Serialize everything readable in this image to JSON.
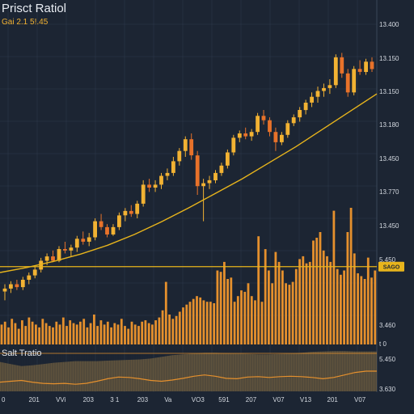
{
  "title": "Prisct Ratiol",
  "subtitle": "Gai 2.1 5!.45",
  "indicator_title": "Salt Tratio",
  "colors": {
    "background": "#1c2533",
    "grid": "#2e3a4c",
    "candle_up": "#f2b233",
    "candle_down": "#e8722a",
    "volume": "#e5902d",
    "trend": "#e7b41c",
    "hline": "#e7b41c",
    "indicator_fill": "#6a5b40",
    "indicator_line": "#e5902d"
  },
  "chart_data": [
    {
      "type": "candlestick",
      "price_axis_labels": [
        "13.400",
        "13.150",
        "13.150",
        "13.180",
        "13.450",
        "13.770",
        "13.450",
        "5.450",
        "3.460"
      ],
      "current_price_label": "SAGO",
      "horizontal_line_value": 2.75,
      "ylim": [
        0,
        10
      ],
      "candles": [
        {
          "o": 1.9,
          "h": 2.15,
          "l": 1.6,
          "c": 2.0
        },
        {
          "o": 2.0,
          "h": 2.25,
          "l": 1.85,
          "c": 2.15
        },
        {
          "o": 2.15,
          "h": 2.3,
          "l": 1.95,
          "c": 2.05
        },
        {
          "o": 2.05,
          "h": 2.4,
          "l": 1.95,
          "c": 2.3
        },
        {
          "o": 2.3,
          "h": 2.55,
          "l": 2.15,
          "c": 2.45
        },
        {
          "o": 2.45,
          "h": 2.75,
          "l": 2.35,
          "c": 2.65
        },
        {
          "o": 2.65,
          "h": 3.05,
          "l": 2.55,
          "c": 2.95
        },
        {
          "o": 2.95,
          "h": 3.2,
          "l": 2.8,
          "c": 3.1
        },
        {
          "o": 3.1,
          "h": 3.3,
          "l": 2.9,
          "c": 2.95
        },
        {
          "o": 2.95,
          "h": 3.45,
          "l": 2.9,
          "c": 3.35
        },
        {
          "o": 3.35,
          "h": 3.6,
          "l": 3.2,
          "c": 3.3
        },
        {
          "o": 3.3,
          "h": 3.5,
          "l": 3.1,
          "c": 3.4
        },
        {
          "o": 3.4,
          "h": 3.8,
          "l": 3.25,
          "c": 3.7
        },
        {
          "o": 3.7,
          "h": 3.95,
          "l": 3.5,
          "c": 3.6
        },
        {
          "o": 3.6,
          "h": 3.9,
          "l": 3.45,
          "c": 3.75
        },
        {
          "o": 3.75,
          "h": 4.4,
          "l": 3.65,
          "c": 4.3
        },
        {
          "o": 4.3,
          "h": 4.55,
          "l": 4.0,
          "c": 4.1
        },
        {
          "o": 4.1,
          "h": 4.2,
          "l": 3.75,
          "c": 3.85
        },
        {
          "o": 3.85,
          "h": 4.2,
          "l": 3.8,
          "c": 4.1
        },
        {
          "o": 4.1,
          "h": 4.6,
          "l": 4.0,
          "c": 4.5
        },
        {
          "o": 4.5,
          "h": 4.75,
          "l": 4.3,
          "c": 4.65
        },
        {
          "o": 4.65,
          "h": 4.85,
          "l": 4.45,
          "c": 4.55
        },
        {
          "o": 4.55,
          "h": 5.0,
          "l": 4.4,
          "c": 4.9
        },
        {
          "o": 4.9,
          "h": 5.7,
          "l": 4.8,
          "c": 5.55
        },
        {
          "o": 5.55,
          "h": 5.75,
          "l": 5.3,
          "c": 5.45
        },
        {
          "o": 5.45,
          "h": 5.7,
          "l": 5.3,
          "c": 5.55
        },
        {
          "o": 5.55,
          "h": 5.95,
          "l": 5.4,
          "c": 5.85
        },
        {
          "o": 5.85,
          "h": 6.1,
          "l": 5.7,
          "c": 5.95
        },
        {
          "o": 5.95,
          "h": 6.5,
          "l": 5.85,
          "c": 6.35
        },
        {
          "o": 6.35,
          "h": 6.8,
          "l": 6.2,
          "c": 6.7
        },
        {
          "o": 6.7,
          "h": 7.2,
          "l": 6.5,
          "c": 7.1
        },
        {
          "o": 7.1,
          "h": 7.3,
          "l": 6.4,
          "c": 6.55
        },
        {
          "o": 6.55,
          "h": 6.7,
          "l": 5.2,
          "c": 5.5
        },
        {
          "o": 5.5,
          "h": 5.75,
          "l": 4.3,
          "c": 5.6
        },
        {
          "o": 5.6,
          "h": 5.85,
          "l": 5.4,
          "c": 5.7
        },
        {
          "o": 5.7,
          "h": 6.05,
          "l": 5.6,
          "c": 5.95
        },
        {
          "o": 5.95,
          "h": 6.3,
          "l": 5.85,
          "c": 6.2
        },
        {
          "o": 6.2,
          "h": 6.75,
          "l": 6.1,
          "c": 6.65
        },
        {
          "o": 6.65,
          "h": 7.25,
          "l": 6.55,
          "c": 7.15
        },
        {
          "o": 7.15,
          "h": 7.4,
          "l": 7.0,
          "c": 7.3
        },
        {
          "o": 7.3,
          "h": 7.5,
          "l": 7.1,
          "c": 7.2
        },
        {
          "o": 7.2,
          "h": 7.45,
          "l": 7.05,
          "c": 7.35
        },
        {
          "o": 7.35,
          "h": 8.0,
          "l": 7.25,
          "c": 7.9
        },
        {
          "o": 7.9,
          "h": 8.1,
          "l": 7.6,
          "c": 7.75
        },
        {
          "o": 7.75,
          "h": 7.85,
          "l": 7.2,
          "c": 7.35
        },
        {
          "o": 7.35,
          "h": 7.5,
          "l": 6.7,
          "c": 7.0
        },
        {
          "o": 7.0,
          "h": 7.35,
          "l": 6.9,
          "c": 7.25
        },
        {
          "o": 7.25,
          "h": 7.75,
          "l": 7.15,
          "c": 7.65
        },
        {
          "o": 7.65,
          "h": 7.95,
          "l": 7.55,
          "c": 7.85
        },
        {
          "o": 7.85,
          "h": 8.2,
          "l": 7.7,
          "c": 8.1
        },
        {
          "o": 8.1,
          "h": 8.45,
          "l": 7.95,
          "c": 8.35
        },
        {
          "o": 8.35,
          "h": 8.7,
          "l": 8.2,
          "c": 8.55
        },
        {
          "o": 8.55,
          "h": 8.9,
          "l": 8.35,
          "c": 8.75
        },
        {
          "o": 8.75,
          "h": 9.0,
          "l": 8.55,
          "c": 8.85
        },
        {
          "o": 8.85,
          "h": 9.15,
          "l": 8.65,
          "c": 8.95
        },
        {
          "o": 8.95,
          "h": 10.0,
          "l": 8.85,
          "c": 9.9
        },
        {
          "o": 9.9,
          "h": 10.05,
          "l": 9.2,
          "c": 9.35
        },
        {
          "o": 9.35,
          "h": 9.5,
          "l": 8.55,
          "c": 8.7
        },
        {
          "o": 8.7,
          "h": 9.6,
          "l": 8.6,
          "c": 9.5
        },
        {
          "o": 9.5,
          "h": 9.8,
          "l": 9.3,
          "c": 9.4
        },
        {
          "o": 9.4,
          "h": 9.85,
          "l": 9.3,
          "c": 9.75
        },
        {
          "o": 9.75,
          "h": 9.9,
          "l": 9.4,
          "c": 9.5
        }
      ],
      "trend": [
        2.55,
        2.72,
        2.93,
        3.18,
        3.48,
        3.85,
        4.28,
        4.75,
        5.25,
        5.75,
        6.3,
        6.85,
        7.45,
        8.05,
        8.65
      ],
      "volume": [
        14,
        16,
        12,
        18,
        15,
        11,
        17,
        13,
        19,
        16,
        14,
        12,
        18,
        15,
        13,
        12,
        16,
        14,
        19,
        13,
        17,
        15,
        14,
        16,
        18,
        12,
        15,
        21,
        13,
        17,
        14,
        16,
        12,
        15,
        14,
        18,
        13,
        11,
        16,
        14,
        13,
        16,
        17,
        15,
        14,
        17,
        19,
        24,
        44,
        21,
        18,
        20,
        23,
        26,
        28,
        30,
        32,
        34,
        33,
        31,
        30,
        30,
        29,
        52,
        51,
        58,
        46,
        47,
        30,
        34,
        38,
        37,
        43,
        34,
        31,
        76,
        30,
        67,
        52,
        43,
        65,
        58,
        52,
        43,
        42,
        44,
        53,
        60,
        62,
        57,
        58,
        73,
        75,
        79,
        66,
        62,
        58,
        94,
        53,
        49,
        52,
        79,
        96,
        64,
        50,
        48,
        46,
        61,
        47,
        52
      ],
      "indicator": {
        "fill": [
          7,
          6.5,
          6,
          6.2,
          6.5,
          6.8,
          7,
          7.2,
          7.2,
          7.2,
          7.3,
          7.4,
          7.5,
          7.6,
          7.8,
          8.2,
          8.6,
          8.8,
          9.0,
          9.2,
          9.2,
          9.1,
          9.0,
          8.9,
          8.8,
          8.8,
          8.9,
          9.0,
          9.2,
          9.4,
          9.5,
          9.6,
          9.6,
          9.5,
          9.5,
          9.5
        ],
        "line": [
          2.2,
          2.4,
          2.6,
          2.2,
          1.9,
          1.8,
          1.9,
          1.7,
          1.9,
          2.4,
          3.0,
          3.4,
          3.3,
          3.0,
          2.6,
          2.4,
          2.7,
          3.1,
          3.6,
          3.9,
          3.6,
          3.1,
          3.0,
          3.4,
          3.5,
          3.3,
          3.5,
          3.6,
          3.5,
          3.3,
          3.0,
          3.3,
          3.9,
          4.5,
          4.8,
          4.8
        ],
        "axis_labels": [
          "t 0",
          "5.450",
          "3.630"
        ]
      },
      "x_labels": [
        "0",
        "201",
        "VVi",
        "203",
        "3 1",
        "203",
        "Va",
        "VO3",
        "591",
        "207",
        "V07",
        "V13",
        "201",
        "V07"
      ]
    }
  ]
}
